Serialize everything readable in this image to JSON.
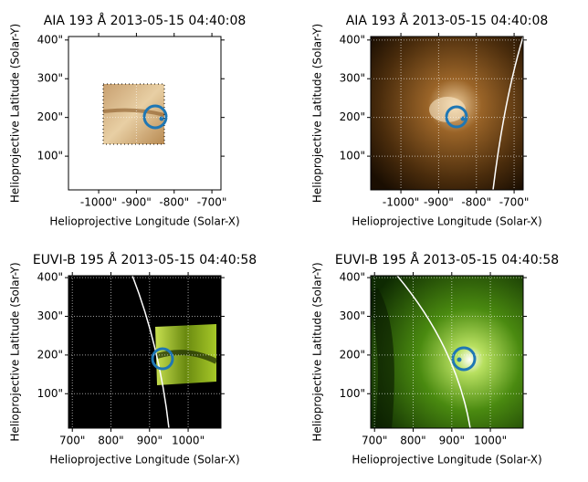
{
  "chart_data": [
    {
      "type": "image",
      "title": "AIA 193 Å 2013-05-15 04:40:08",
      "x_label": "Helioprojective Longitude (Solar-X)",
      "y_label": "Helioprojective Latitude (Solar-Y)",
      "xlim": [
        -1080,
        -676
      ],
      "ylim": [
        13,
        409
      ],
      "xticks": [
        {
          "value": -1000,
          "label": "-1000\""
        },
        {
          "value": -900,
          "label": "-900\""
        },
        {
          "value": -800,
          "label": "-800\""
        },
        {
          "value": -700,
          "label": "-700\""
        }
      ],
      "yticks": [
        {
          "value": 100,
          "label": "100\""
        },
        {
          "value": 200,
          "label": "200\""
        },
        {
          "value": 300,
          "label": "300\""
        },
        {
          "value": 400,
          "label": "400\""
        }
      ],
      "grid": true
    },
    {
      "type": "image",
      "title": "AIA 193 Å 2013-05-15 04:40:08",
      "x_label": "Helioprojective Longitude (Solar-X)",
      "y_label": "Helioprojective Latitude (Solar-Y)",
      "xlim": [
        -1080,
        -676
      ],
      "ylim": [
        13,
        409
      ],
      "xticks": [
        {
          "value": -1000,
          "label": "-1000\""
        },
        {
          "value": -900,
          "label": "-900\""
        },
        {
          "value": -800,
          "label": "-800\""
        },
        {
          "value": -700,
          "label": "-700\""
        }
      ],
      "yticks": [
        {
          "value": 100,
          "label": "100\""
        },
        {
          "value": 200,
          "label": "200\""
        },
        {
          "value": 300,
          "label": "300\""
        },
        {
          "value": 400,
          "label": "400\""
        }
      ],
      "grid": true
    },
    {
      "type": "image",
      "title": "EUVI-B 195 Å 2013-05-15 04:40:58",
      "x_label": "Helioprojective Longitude (Solar-X)",
      "y_label": "Helioprojective Latitude (Solar-Y)",
      "xlim": [
        690,
        1085
      ],
      "ylim": [
        11,
        405
      ],
      "xticks": [
        {
          "value": 700,
          "label": "700\""
        },
        {
          "value": 800,
          "label": "800\""
        },
        {
          "value": 900,
          "label": "900\""
        },
        {
          "value": 1000,
          "label": "1000\""
        }
      ],
      "yticks": [
        {
          "value": 100,
          "label": "100\""
        },
        {
          "value": 200,
          "label": "200\""
        },
        {
          "value": 300,
          "label": "300\""
        },
        {
          "value": 400,
          "label": "400\""
        }
      ],
      "grid": true
    },
    {
      "type": "image",
      "title": "EUVI-B 195 Å 2013-05-15 04:40:58",
      "x_label": "Helioprojective Longitude (Solar-X)",
      "y_label": "Helioprojective Latitude (Solar-Y)",
      "xlim": [
        690,
        1085
      ],
      "ylim": [
        11,
        405
      ],
      "xticks": [
        {
          "value": 700,
          "label": "700\""
        },
        {
          "value": 800,
          "label": "800\""
        },
        {
          "value": 900,
          "label": "900\""
        },
        {
          "value": 1000,
          "label": "1000\""
        }
      ],
      "yticks": [
        {
          "value": 100,
          "label": "100\""
        },
        {
          "value": 200,
          "label": "200\""
        },
        {
          "value": 300,
          "label": "300\""
        },
        {
          "value": 400,
          "label": "400\""
        }
      ],
      "grid": true
    }
  ]
}
